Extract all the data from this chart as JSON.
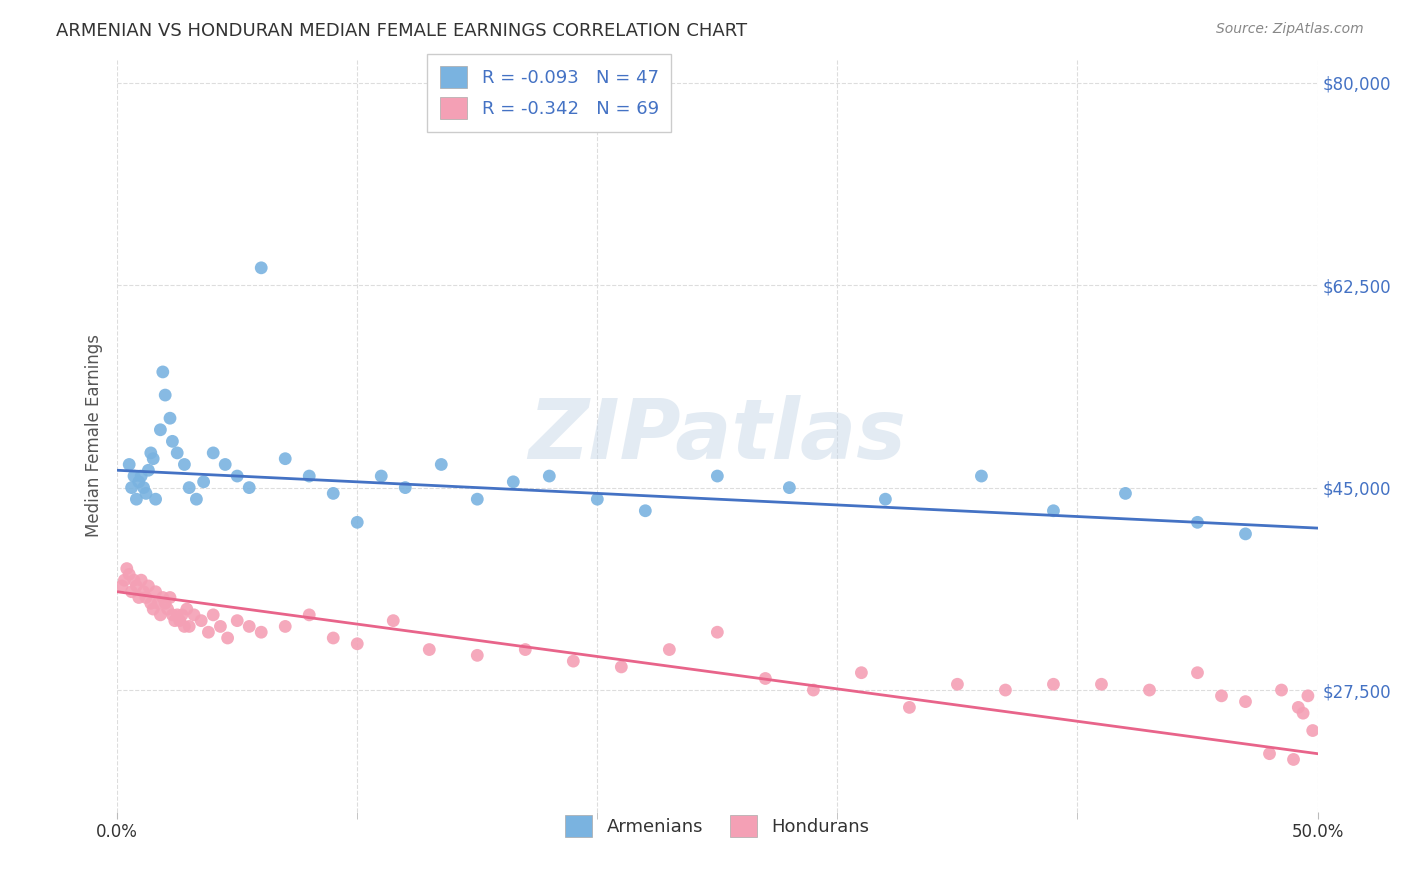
{
  "title": "ARMENIAN VS HONDURAN MEDIAN FEMALE EARNINGS CORRELATION CHART",
  "source": "Source: ZipAtlas.com",
  "ylabel": "Median Female Earnings",
  "xlim": [
    0.0,
    0.5
  ],
  "ylim": [
    17000,
    82000
  ],
  "yticks": [
    27500,
    45000,
    62500,
    80000
  ],
  "ytick_labels": [
    "$27,500",
    "$45,000",
    "$62,500",
    "$80,000"
  ],
  "background_color": "#ffffff",
  "watermark": "ZIPatlas",
  "legend_r_armenian": "R = -0.093",
  "legend_n_armenian": "N = 47",
  "legend_r_honduran": "R = -0.342",
  "legend_n_honduran": "N = 69",
  "armenian_color": "#7ab3e0",
  "honduran_color": "#f4a0b5",
  "armenian_line_color": "#4472c4",
  "honduran_line_color": "#e8648a",
  "title_color": "#333333",
  "axis_label_color": "#555555",
  "ytick_color": "#4472c4",
  "grid_color": "#dddddd",
  "armenian_x": [
    0.005,
    0.006,
    0.007,
    0.008,
    0.009,
    0.01,
    0.011,
    0.012,
    0.013,
    0.014,
    0.015,
    0.016,
    0.018,
    0.019,
    0.02,
    0.022,
    0.023,
    0.025,
    0.028,
    0.03,
    0.033,
    0.036,
    0.04,
    0.045,
    0.05,
    0.055,
    0.06,
    0.07,
    0.08,
    0.09,
    0.1,
    0.11,
    0.12,
    0.135,
    0.15,
    0.165,
    0.18,
    0.2,
    0.22,
    0.25,
    0.28,
    0.32,
    0.36,
    0.39,
    0.42,
    0.45,
    0.47
  ],
  "armenian_y": [
    47000,
    45000,
    46000,
    44000,
    45500,
    46000,
    45000,
    44500,
    46500,
    48000,
    47500,
    44000,
    50000,
    55000,
    53000,
    51000,
    49000,
    48000,
    47000,
    45000,
    44000,
    45500,
    48000,
    47000,
    46000,
    45000,
    64000,
    47500,
    46000,
    44500,
    42000,
    46000,
    45000,
    47000,
    44000,
    45500,
    46000,
    44000,
    43000,
    46000,
    45000,
    44000,
    46000,
    43000,
    44500,
    42000,
    41000
  ],
  "honduran_x": [
    0.002,
    0.003,
    0.004,
    0.005,
    0.006,
    0.007,
    0.008,
    0.009,
    0.01,
    0.011,
    0.012,
    0.013,
    0.014,
    0.015,
    0.016,
    0.017,
    0.018,
    0.019,
    0.02,
    0.021,
    0.022,
    0.023,
    0.024,
    0.025,
    0.026,
    0.027,
    0.028,
    0.029,
    0.03,
    0.032,
    0.035,
    0.038,
    0.04,
    0.043,
    0.046,
    0.05,
    0.055,
    0.06,
    0.07,
    0.08,
    0.09,
    0.1,
    0.115,
    0.13,
    0.15,
    0.17,
    0.19,
    0.21,
    0.23,
    0.25,
    0.27,
    0.29,
    0.31,
    0.33,
    0.35,
    0.37,
    0.39,
    0.41,
    0.43,
    0.45,
    0.46,
    0.47,
    0.48,
    0.485,
    0.49,
    0.492,
    0.494,
    0.496,
    0.498
  ],
  "honduran_y": [
    36500,
    37000,
    38000,
    37500,
    36000,
    37000,
    36500,
    35500,
    37000,
    36000,
    35500,
    36500,
    35000,
    34500,
    36000,
    35000,
    34000,
    35500,
    35000,
    34500,
    35500,
    34000,
    33500,
    34000,
    33500,
    34000,
    33000,
    34500,
    33000,
    34000,
    33500,
    32500,
    34000,
    33000,
    32000,
    33500,
    33000,
    32500,
    33000,
    34000,
    32000,
    31500,
    33500,
    31000,
    30500,
    31000,
    30000,
    29500,
    31000,
    32500,
    28500,
    27500,
    29000,
    26000,
    28000,
    27500,
    28000,
    28000,
    27500,
    29000,
    27000,
    26500,
    22000,
    27500,
    21500,
    26000,
    25500,
    27000,
    24000
  ],
  "arm_line_x": [
    0.0,
    0.5
  ],
  "arm_line_y": [
    46500,
    41500
  ],
  "hon_line_x": [
    0.0,
    0.5
  ],
  "hon_line_y": [
    36000,
    22000
  ]
}
